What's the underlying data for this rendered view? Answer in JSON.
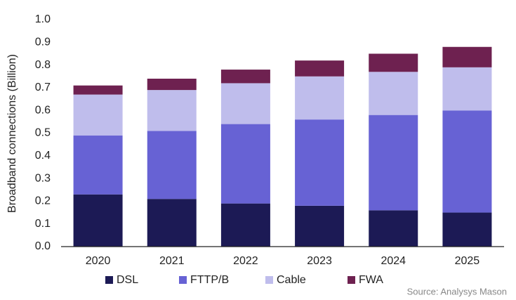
{
  "chart_data": {
    "type": "stacked_bar",
    "y_label": "Broadband connections (Billion)",
    "source": "Source: Analysys Mason",
    "categories": [
      "2020",
      "2021",
      "2022",
      "2023",
      "2024",
      "2025"
    ],
    "series": [
      {
        "name": "DSL",
        "color": "#1c1a55",
        "values": [
          0.23,
          0.21,
          0.19,
          0.18,
          0.16,
          0.15
        ]
      },
      {
        "name": "FTTP/B",
        "color": "#6762d4",
        "values": [
          0.26,
          0.3,
          0.35,
          0.38,
          0.42,
          0.45
        ]
      },
      {
        "name": "Cable",
        "color": "#bfbdec",
        "values": [
          0.18,
          0.18,
          0.18,
          0.19,
          0.19,
          0.19
        ]
      },
      {
        "name": "FWA",
        "color": "#6e2150",
        "values": [
          0.04,
          0.05,
          0.06,
          0.07,
          0.08,
          0.09
        ]
      }
    ],
    "ylim": [
      0,
      1
    ],
    "yticks": [
      {
        "value": 0,
        "label": "0.0"
      },
      0.1,
      0.2,
      0.3,
      0.4,
      0.5,
      0.6,
      0.7,
      0.8,
      0.9,
      {
        "value": 1,
        "label": "1.0"
      }
    ],
    "grid": false,
    "legend": "bottom"
  }
}
